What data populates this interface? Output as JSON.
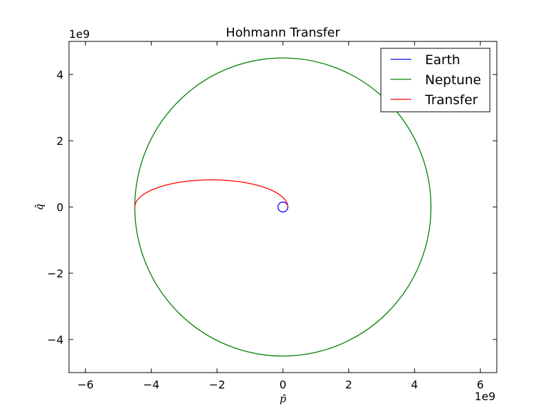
{
  "chart_data": {
    "type": "line",
    "title": "Hohmann Transfer",
    "xlabel": "p̂",
    "ylabel": "q̂",
    "x_offset_label": "1e9",
    "y_offset_label": "1e9",
    "xlim": [
      -6.5,
      6.5
    ],
    "ylim": [
      -5,
      5
    ],
    "x_ticks": [
      -6,
      -4,
      -2,
      0,
      2,
      4,
      6
    ],
    "x_tick_labels": [
      "−6",
      "−4",
      "−2",
      "0",
      "2",
      "4",
      "6"
    ],
    "y_ticks": [
      -4,
      -2,
      0,
      2,
      4
    ],
    "y_tick_labels": [
      "−4",
      "−2",
      "0",
      "2",
      "4"
    ],
    "grid": false,
    "legend_position": "top-right",
    "units_note": "axis values in units of 1e9",
    "series": [
      {
        "name": "Earth",
        "color": "#0000ff",
        "shape": "circle",
        "center": [
          0,
          0
        ],
        "radius": 0.15
      },
      {
        "name": "Neptune",
        "color": "#008000",
        "shape": "circle",
        "center": [
          0,
          0
        ],
        "radius": 4.5
      },
      {
        "name": "Transfer",
        "color": "#ff0000",
        "shape": "half-ellipse",
        "center": [
          -2.175,
          0
        ],
        "semi_major": 2.325,
        "semi_minor": 0.82
      }
    ]
  }
}
